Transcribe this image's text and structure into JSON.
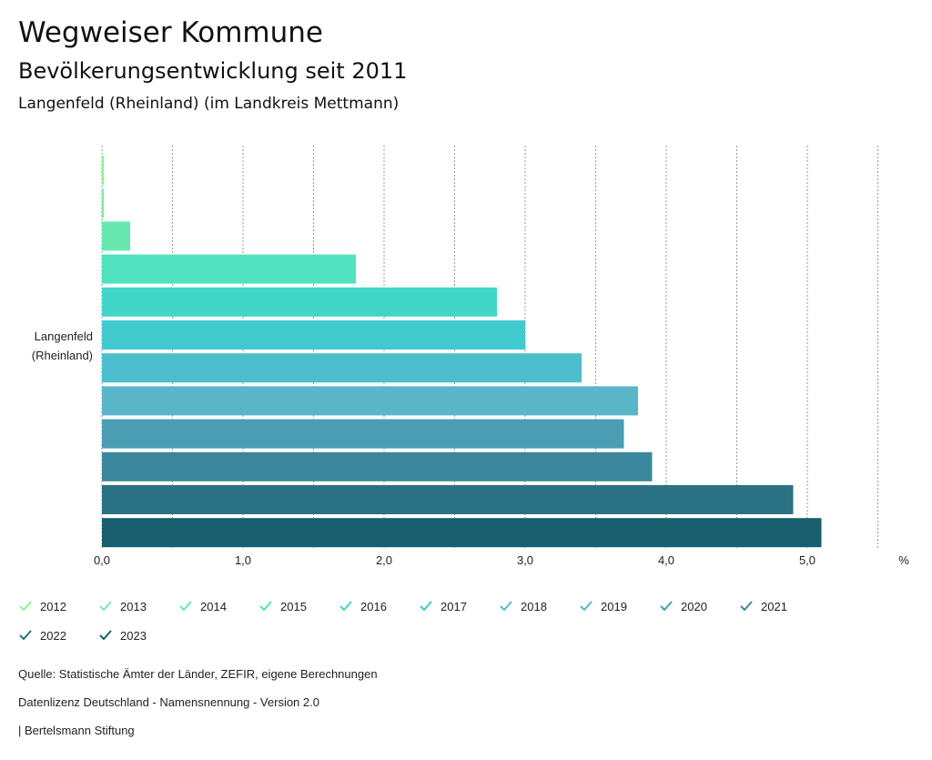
{
  "header": {
    "title": "Wegweiser Kommune",
    "subtitle": "Bevölkerungsentwicklung seit 2011",
    "region": "Langenfeld (Rheinland) (im Landkreis Mettmann)"
  },
  "chart_data": {
    "type": "bar",
    "orientation": "horizontal",
    "categories": [
      "Langenfeld (Rheinland)"
    ],
    "category_label_lines": [
      "Langenfeld",
      "(Rheinland)"
    ],
    "series": [
      {
        "name": "2012",
        "values": [
          0.01
        ],
        "color": "#90ee90"
      },
      {
        "name": "2013",
        "values": [
          0.01
        ],
        "color": "#7eeaa4"
      },
      {
        "name": "2014",
        "values": [
          0.2
        ],
        "color": "#66e8b0"
      },
      {
        "name": "2015",
        "values": [
          1.8
        ],
        "color": "#50e2c0"
      },
      {
        "name": "2016",
        "values": [
          2.8
        ],
        "color": "#40d6c8"
      },
      {
        "name": "2017",
        "values": [
          3.0
        ],
        "color": "#40cace"
      },
      {
        "name": "2018",
        "values": [
          3.4
        ],
        "color": "#4bbfce"
      },
      {
        "name": "2019",
        "values": [
          3.8
        ],
        "color": "#5bb5c8"
      },
      {
        "name": "2020",
        "values": [
          3.7
        ],
        "color": "#4a9db2"
      },
      {
        "name": "2021",
        "values": [
          3.9
        ],
        "color": "#3b889c"
      },
      {
        "name": "2022",
        "values": [
          4.9
        ],
        "color": "#2a7283"
      },
      {
        "name": "2023",
        "values": [
          5.1
        ],
        "color": "#195e6e"
      }
    ],
    "xlim": [
      0,
      5.5
    ],
    "xticks": [
      0,
      0.5,
      1,
      1.5,
      2,
      2.5,
      3,
      3.5,
      4,
      4.5,
      5,
      5.5
    ],
    "xtick_labels": [
      "0,0",
      "1,0",
      "2,0",
      "3,0",
      "4,0",
      "5,0"
    ],
    "xtick_label_values": [
      0,
      1,
      2,
      3,
      4,
      5
    ],
    "unit": "%",
    "grid": true,
    "legend_position": "bottom"
  },
  "footer": {
    "source": "Quelle: Statistische Ämter der Länder, ZEFIR, eigene Berechnungen",
    "license": "Datenlizenz Deutschland - Namensnennung - Version 2.0",
    "publisher": "| Bertelsmann Stiftung"
  }
}
